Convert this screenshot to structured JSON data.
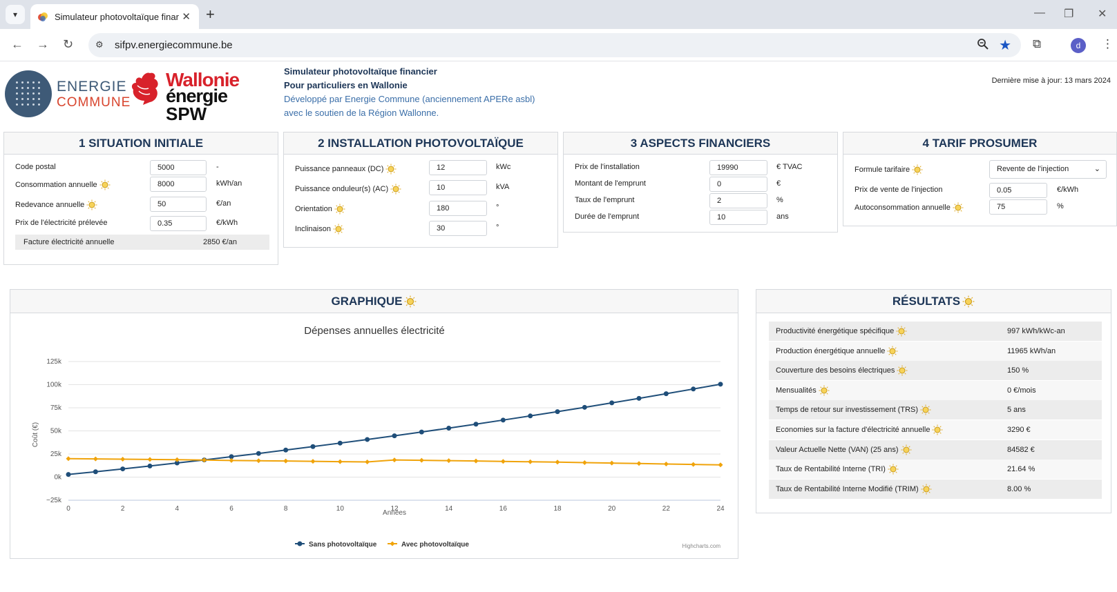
{
  "browser": {
    "tab_title": "Simulateur photovoltaïque finar",
    "url": "sifpv.energiecommune.be",
    "avatar_letter": "d"
  },
  "header": {
    "logo_energie": "ENERGIE",
    "logo_commune": "COMMUNE",
    "logo_wallonie": "Wallonie",
    "logo_energie2": "énergie",
    "logo_spw": "SPW",
    "line1": "Simulateur photovoltaïque financier",
    "line2": "Pour particuliers en Wallonie",
    "line3": "Développé par Energie Commune (anciennement APERe asbl)",
    "line4": "avec le soutien de la Région Wallonne.",
    "last_update": "Dernière mise à jour: 13 mars 2024"
  },
  "situation": {
    "title": "1 SITUATION INITIALE",
    "rows": [
      {
        "label": "Code postal",
        "value": "5000",
        "unit": "-",
        "bulb": false
      },
      {
        "label": "Consommation annuelle",
        "value": "8000",
        "unit": "kWh/an",
        "bulb": true
      },
      {
        "label": "Redevance annuelle",
        "value": "50",
        "unit": "€/an",
        "bulb": true
      },
      {
        "label": "Prix de l'électricité prélevée",
        "value": "0.35",
        "unit": "€/kWh",
        "bulb": false
      }
    ],
    "summary_label": "Facture électricité annuelle",
    "summary_value": "2850 €/an"
  },
  "installation": {
    "title": "2 INSTALLATION PHOTOVOLTAÏQUE",
    "rows": [
      {
        "label": "Puissance panneaux (DC)",
        "value": "12",
        "unit": "kWc"
      },
      {
        "label": "Puissance onduleur(s) (AC)",
        "value": "10",
        "unit": "kVA"
      },
      {
        "label": "Orientation",
        "value": "180",
        "unit": "°"
      },
      {
        "label": "Inclinaison",
        "value": "30",
        "unit": "°"
      }
    ]
  },
  "financier": {
    "title": "3 ASPECTS FINANCIERS",
    "rows": [
      {
        "label": "Prix de l'installation",
        "value": "19990",
        "unit": "€ TVAC"
      },
      {
        "label": "Montant de l'emprunt",
        "value": "0",
        "unit": "€"
      },
      {
        "label": "Taux de l'emprunt",
        "value": "2",
        "unit": "%"
      },
      {
        "label": "Durée de l'emprunt",
        "value": "10",
        "unit": "ans"
      }
    ]
  },
  "prosumer": {
    "title": "4 TARIF PROSUMER",
    "formula_label": "Formule tarifaire",
    "formula_value": "Revente de l'injection",
    "rows": [
      {
        "label": "Prix de vente de l'injection",
        "value": "0.05",
        "unit": "€/kWh",
        "bulb": false
      },
      {
        "label": "Autoconsommation annuelle",
        "value": "75",
        "unit": "%",
        "bulb": true
      }
    ]
  },
  "graphique": {
    "title": "GRAPHIQUE",
    "credit": "Highcharts.com"
  },
  "chart_data": {
    "type": "line",
    "title": "Dépenses annuelles électricité",
    "xlabel": "Années",
    "ylabel": "Coût (€)",
    "xlim": [
      0,
      24
    ],
    "ylim": [
      -25000,
      125000
    ],
    "x_ticks": [
      "0",
      "2",
      "4",
      "6",
      "8",
      "10",
      "12",
      "14",
      "16",
      "18",
      "20",
      "22",
      "24"
    ],
    "y_ticks": [
      "−25k",
      "0k",
      "25k",
      "50k",
      "75k",
      "100k",
      "125k"
    ],
    "y_tick_values": [
      -25000,
      0,
      25000,
      50000,
      75000,
      100000,
      125000
    ],
    "x": [
      0,
      1,
      2,
      3,
      4,
      5,
      6,
      7,
      8,
      9,
      10,
      11,
      12,
      13,
      14,
      15,
      16,
      17,
      18,
      19,
      20,
      21,
      22,
      23,
      24
    ],
    "series": [
      {
        "name": "Sans photovoltaïque",
        "color": "#1f4e79",
        "values": [
          2850,
          5800,
          8900,
          12000,
          15300,
          18600,
          22100,
          25600,
          29300,
          33000,
          36800,
          40700,
          44700,
          48800,
          53000,
          57300,
          61700,
          66200,
          70800,
          75500,
          80300,
          85200,
          90200,
          95300,
          100500
        ]
      },
      {
        "name": "Avec photovoltaïque",
        "color": "#f0a30a",
        "values": [
          19990,
          19700,
          19400,
          19100,
          18800,
          18500,
          18000,
          17700,
          17400,
          17100,
          16700,
          16400,
          18600,
          18200,
          17800,
          17400,
          17000,
          16600,
          16200,
          15700,
          15200,
          14700,
          14200,
          13700,
          13200
        ]
      }
    ],
    "legend_position": "bottom",
    "grid": true
  },
  "results": {
    "title": "RÉSULTATS",
    "rows": [
      {
        "label": "Productivité énergétique spécifique",
        "value": "997 kWh/kWc-an"
      },
      {
        "label": "Production énergétique annuelle",
        "value": "11965 kWh/an"
      },
      {
        "label": "Couverture des besoins électriques",
        "value": "150 %"
      },
      {
        "label": "Mensualités",
        "value": "0 €/mois"
      },
      {
        "label": "Temps de retour sur investissement (TRS)",
        "value": "5 ans"
      },
      {
        "label": "Economies sur la facture d'électricité annuelle",
        "value": "3290 €"
      },
      {
        "label": "Valeur Actuelle Nette (VAN) (25 ans)",
        "value": "84582 €"
      },
      {
        "label": "Taux de Rentabilité Interne (TRI)",
        "value": "21.64 %"
      },
      {
        "label": "Taux de Rentabilité Interne Modifié (TRIM)",
        "value": "8.00 %"
      }
    ]
  }
}
